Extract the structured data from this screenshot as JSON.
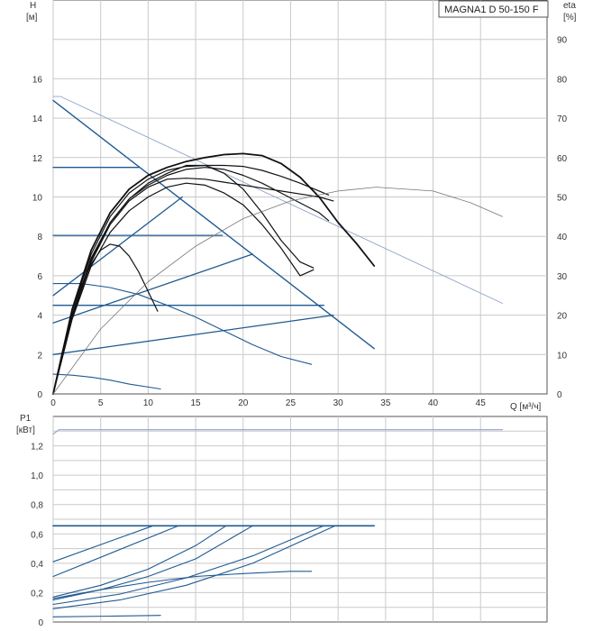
{
  "model_label": "MAGNA1 D 50-150 F",
  "colors": {
    "grid": "#c9c9c9",
    "axis": "#555555",
    "blue": "#1f5a92",
    "black": "#111111",
    "eta": "#777777",
    "system_light": "#8fa3c7"
  },
  "chart_data": [
    {
      "type": "line",
      "name": "head",
      "ylabel_line1": "H",
      "ylabel_line2": "[м]",
      "y2label_line1": "eta",
      "y2label_line2": "[%]",
      "xlabel": "Q [м³/ч]",
      "xlim": [
        0,
        52
      ],
      "ylim": [
        0,
        20
      ],
      "y2lim": [
        0,
        100
      ],
      "xticks": [
        0,
        5,
        10,
        15,
        20,
        25,
        30,
        35,
        40,
        45
      ],
      "xtick_labels": [
        "0",
        "5",
        "10",
        "15",
        "20",
        "25",
        "30",
        "35",
        "40",
        "45"
      ],
      "yticks": [
        0,
        2,
        4,
        6,
        8,
        10,
        12,
        14,
        16
      ],
      "ytick_labels": [
        "0",
        "2",
        "4",
        "6",
        "8",
        "10",
        "12",
        "14",
        "16"
      ],
      "y2ticks": [
        0,
        10,
        20,
        30,
        40,
        50,
        60,
        70,
        80,
        90
      ],
      "y2tick_labels": [
        "0",
        "10",
        "20",
        "30",
        "40",
        "50",
        "60",
        "70",
        "80",
        "90"
      ],
      "grid": true,
      "series": [
        {
          "role": "blue",
          "width": 1.4,
          "x": [
            0,
            33.8
          ],
          "y": [
            14.9,
            2.3
          ]
        },
        {
          "role": "light",
          "width": 0.9,
          "x": [
            0,
            0.8,
            47.3
          ],
          "y": [
            15.1,
            15.1,
            4.6
          ]
        },
        {
          "role": "blue",
          "width": 1.3,
          "x": [
            0,
            9.1
          ],
          "y": [
            11.5,
            11.5
          ]
        },
        {
          "role": "blue",
          "width": 1.3,
          "x": [
            0,
            17.8
          ],
          "y": [
            8.05,
            8.05
          ]
        },
        {
          "role": "blue",
          "width": 1.3,
          "x": [
            0,
            28.5
          ],
          "y": [
            4.5,
            4.5
          ]
        },
        {
          "role": "blue",
          "width": 1.3,
          "x": [
            0,
            13.6
          ],
          "y": [
            5.0,
            10.0
          ]
        },
        {
          "role": "blue",
          "width": 1.3,
          "x": [
            0,
            21.0
          ],
          "y": [
            3.6,
            7.1
          ]
        },
        {
          "role": "blue",
          "width": 1.3,
          "x": [
            0,
            29.5
          ],
          "y": [
            2.0,
            4.0
          ]
        },
        {
          "role": "blue",
          "width": 1.1,
          "x": [
            0,
            3,
            6,
            9,
            12,
            15,
            18,
            21,
            24,
            27.2
          ],
          "y": [
            5.6,
            5.6,
            5.4,
            5.05,
            4.5,
            3.9,
            3.2,
            2.5,
            1.9,
            1.5
          ]
        },
        {
          "role": "blue",
          "width": 1.1,
          "x": [
            0,
            2,
            4,
            6,
            8,
            11.3
          ],
          "y": [
            1.0,
            0.95,
            0.85,
            0.7,
            0.5,
            0.25
          ]
        },
        {
          "role": "black",
          "width": 1.2,
          "x": [
            0,
            1,
            2,
            3,
            4,
            5,
            6,
            7,
            8,
            9,
            10,
            11
          ],
          "y": [
            0,
            2.2,
            4.0,
            5.5,
            6.6,
            7.3,
            7.6,
            7.5,
            7.0,
            6.2,
            5.2,
            4.2
          ]
        },
        {
          "role": "black",
          "width": 1.2,
          "x": [
            0,
            2,
            4,
            6,
            8,
            10,
            12,
            14,
            16,
            18,
            20,
            22,
            24,
            26,
            27.4
          ],
          "y": [
            0,
            3.8,
            6.5,
            8.2,
            9.3,
            10.0,
            10.5,
            10.7,
            10.6,
            10.2,
            9.6,
            8.6,
            7.4,
            6.0,
            6.3
          ]
        },
        {
          "role": "black",
          "width": 1.2,
          "x": [
            0,
            2,
            4,
            6,
            8,
            10,
            12,
            14,
            16,
            18,
            20,
            22,
            24,
            26,
            28,
            29
          ],
          "y": [
            0,
            4.0,
            6.9,
            8.7,
            9.9,
            10.6,
            11.1,
            11.4,
            11.5,
            11.4,
            11.1,
            10.7,
            10.2,
            9.7,
            9.2,
            8.8
          ]
        },
        {
          "role": "black",
          "width": 1.2,
          "x": [
            0,
            2,
            4,
            6,
            8,
            10,
            12,
            14,
            16,
            18,
            20,
            22,
            24,
            26,
            28,
            29.5
          ],
          "y": [
            0,
            3.9,
            6.7,
            8.6,
            9.8,
            10.5,
            10.9,
            10.95,
            10.9,
            10.75,
            10.6,
            10.45,
            10.3,
            10.15,
            10.0,
            9.8
          ]
        },
        {
          "role": "black",
          "width": 1.2,
          "x": [
            0,
            2,
            4,
            6,
            8,
            10,
            12,
            14,
            16,
            18,
            20,
            22,
            24,
            26,
            28,
            29
          ],
          "y": [
            0,
            4.2,
            7.1,
            9.0,
            10.2,
            10.9,
            11.35,
            11.55,
            11.6,
            11.6,
            11.55,
            11.35,
            11.05,
            10.7,
            10.3,
            10.1
          ]
        },
        {
          "role": "black",
          "width": 1.8,
          "x": [
            0,
            2,
            4,
            6,
            8,
            10,
            12,
            14,
            16,
            18,
            20,
            22,
            24,
            26,
            28,
            30,
            32,
            33.8
          ],
          "y": [
            0,
            4.3,
            7.3,
            9.2,
            10.4,
            11.1,
            11.5,
            11.8,
            12.0,
            12.15,
            12.2,
            12.1,
            11.7,
            11.0,
            10.0,
            8.7,
            7.6,
            6.5
          ]
        },
        {
          "role": "black",
          "width": 1.2,
          "x": [
            0,
            2,
            4,
            6,
            8,
            10,
            12,
            14,
            16,
            18,
            20,
            22,
            24,
            26,
            27.4
          ],
          "y": [
            0,
            4.0,
            6.8,
            8.7,
            9.9,
            10.7,
            11.2,
            11.6,
            11.6,
            11.2,
            10.4,
            9.2,
            7.8,
            6.7,
            6.4
          ]
        },
        {
          "role": "eta",
          "width": 0.8,
          "x": [
            0,
            5,
            10,
            15,
            20,
            25,
            30,
            34,
            40,
            44,
            47.3
          ],
          "y": [
            0,
            3.3,
            5.7,
            7.5,
            8.9,
            9.8,
            10.3,
            10.5,
            10.3,
            9.7,
            9.0
          ]
        }
      ]
    },
    {
      "type": "line",
      "name": "power",
      "ylabel_line1": "P1",
      "ylabel_line2": "[кВт]",
      "xlim": [
        0,
        52
      ],
      "ylim": [
        0,
        1.4
      ],
      "yticks": [
        0,
        0.2,
        0.4,
        0.6,
        0.8,
        1.0,
        1.2
      ],
      "ytick_labels": [
        "0",
        "0,2",
        "0,4",
        "0,6",
        "0,8",
        "1,0",
        "1,2"
      ],
      "grid": true,
      "series": [
        {
          "role": "light_blue",
          "width": 1.1,
          "x": [
            0,
            0.6,
            47.3
          ],
          "y": [
            1.28,
            1.31,
            1.31
          ]
        },
        {
          "role": "blue",
          "width": 1.6,
          "x": [
            0,
            33.8
          ],
          "y": [
            0.655,
            0.655
          ]
        },
        {
          "role": "blue",
          "width": 1.1,
          "x": [
            0,
            10.5
          ],
          "y": [
            0.41,
            0.655
          ]
        },
        {
          "role": "blue",
          "width": 1.1,
          "x": [
            0,
            13.2
          ],
          "y": [
            0.31,
            0.655
          ]
        },
        {
          "role": "blue",
          "width": 1.1,
          "x": [
            0,
            5,
            10,
            15,
            18.2
          ],
          "y": [
            0.17,
            0.25,
            0.36,
            0.52,
            0.655
          ]
        },
        {
          "role": "blue",
          "width": 1.1,
          "x": [
            0,
            5,
            10,
            15,
            21.0
          ],
          "y": [
            0.15,
            0.22,
            0.31,
            0.43,
            0.655
          ]
        },
        {
          "role": "blue",
          "width": 1.1,
          "x": [
            0,
            7,
            14,
            21,
            28.5
          ],
          "y": [
            0.12,
            0.19,
            0.3,
            0.45,
            0.655
          ]
        },
        {
          "role": "blue",
          "width": 1.1,
          "x": [
            0,
            7,
            14,
            21,
            29.7
          ],
          "y": [
            0.09,
            0.15,
            0.25,
            0.4,
            0.655
          ]
        },
        {
          "role": "blue",
          "width": 1.1,
          "x": [
            0,
            5,
            10,
            15,
            20,
            25,
            27.2
          ],
          "y": [
            0.16,
            0.22,
            0.27,
            0.31,
            0.33,
            0.345,
            0.345
          ]
        },
        {
          "role": "blue",
          "width": 1.1,
          "x": [
            0,
            6,
            11.3
          ],
          "y": [
            0.035,
            0.04,
            0.045
          ]
        }
      ]
    }
  ]
}
